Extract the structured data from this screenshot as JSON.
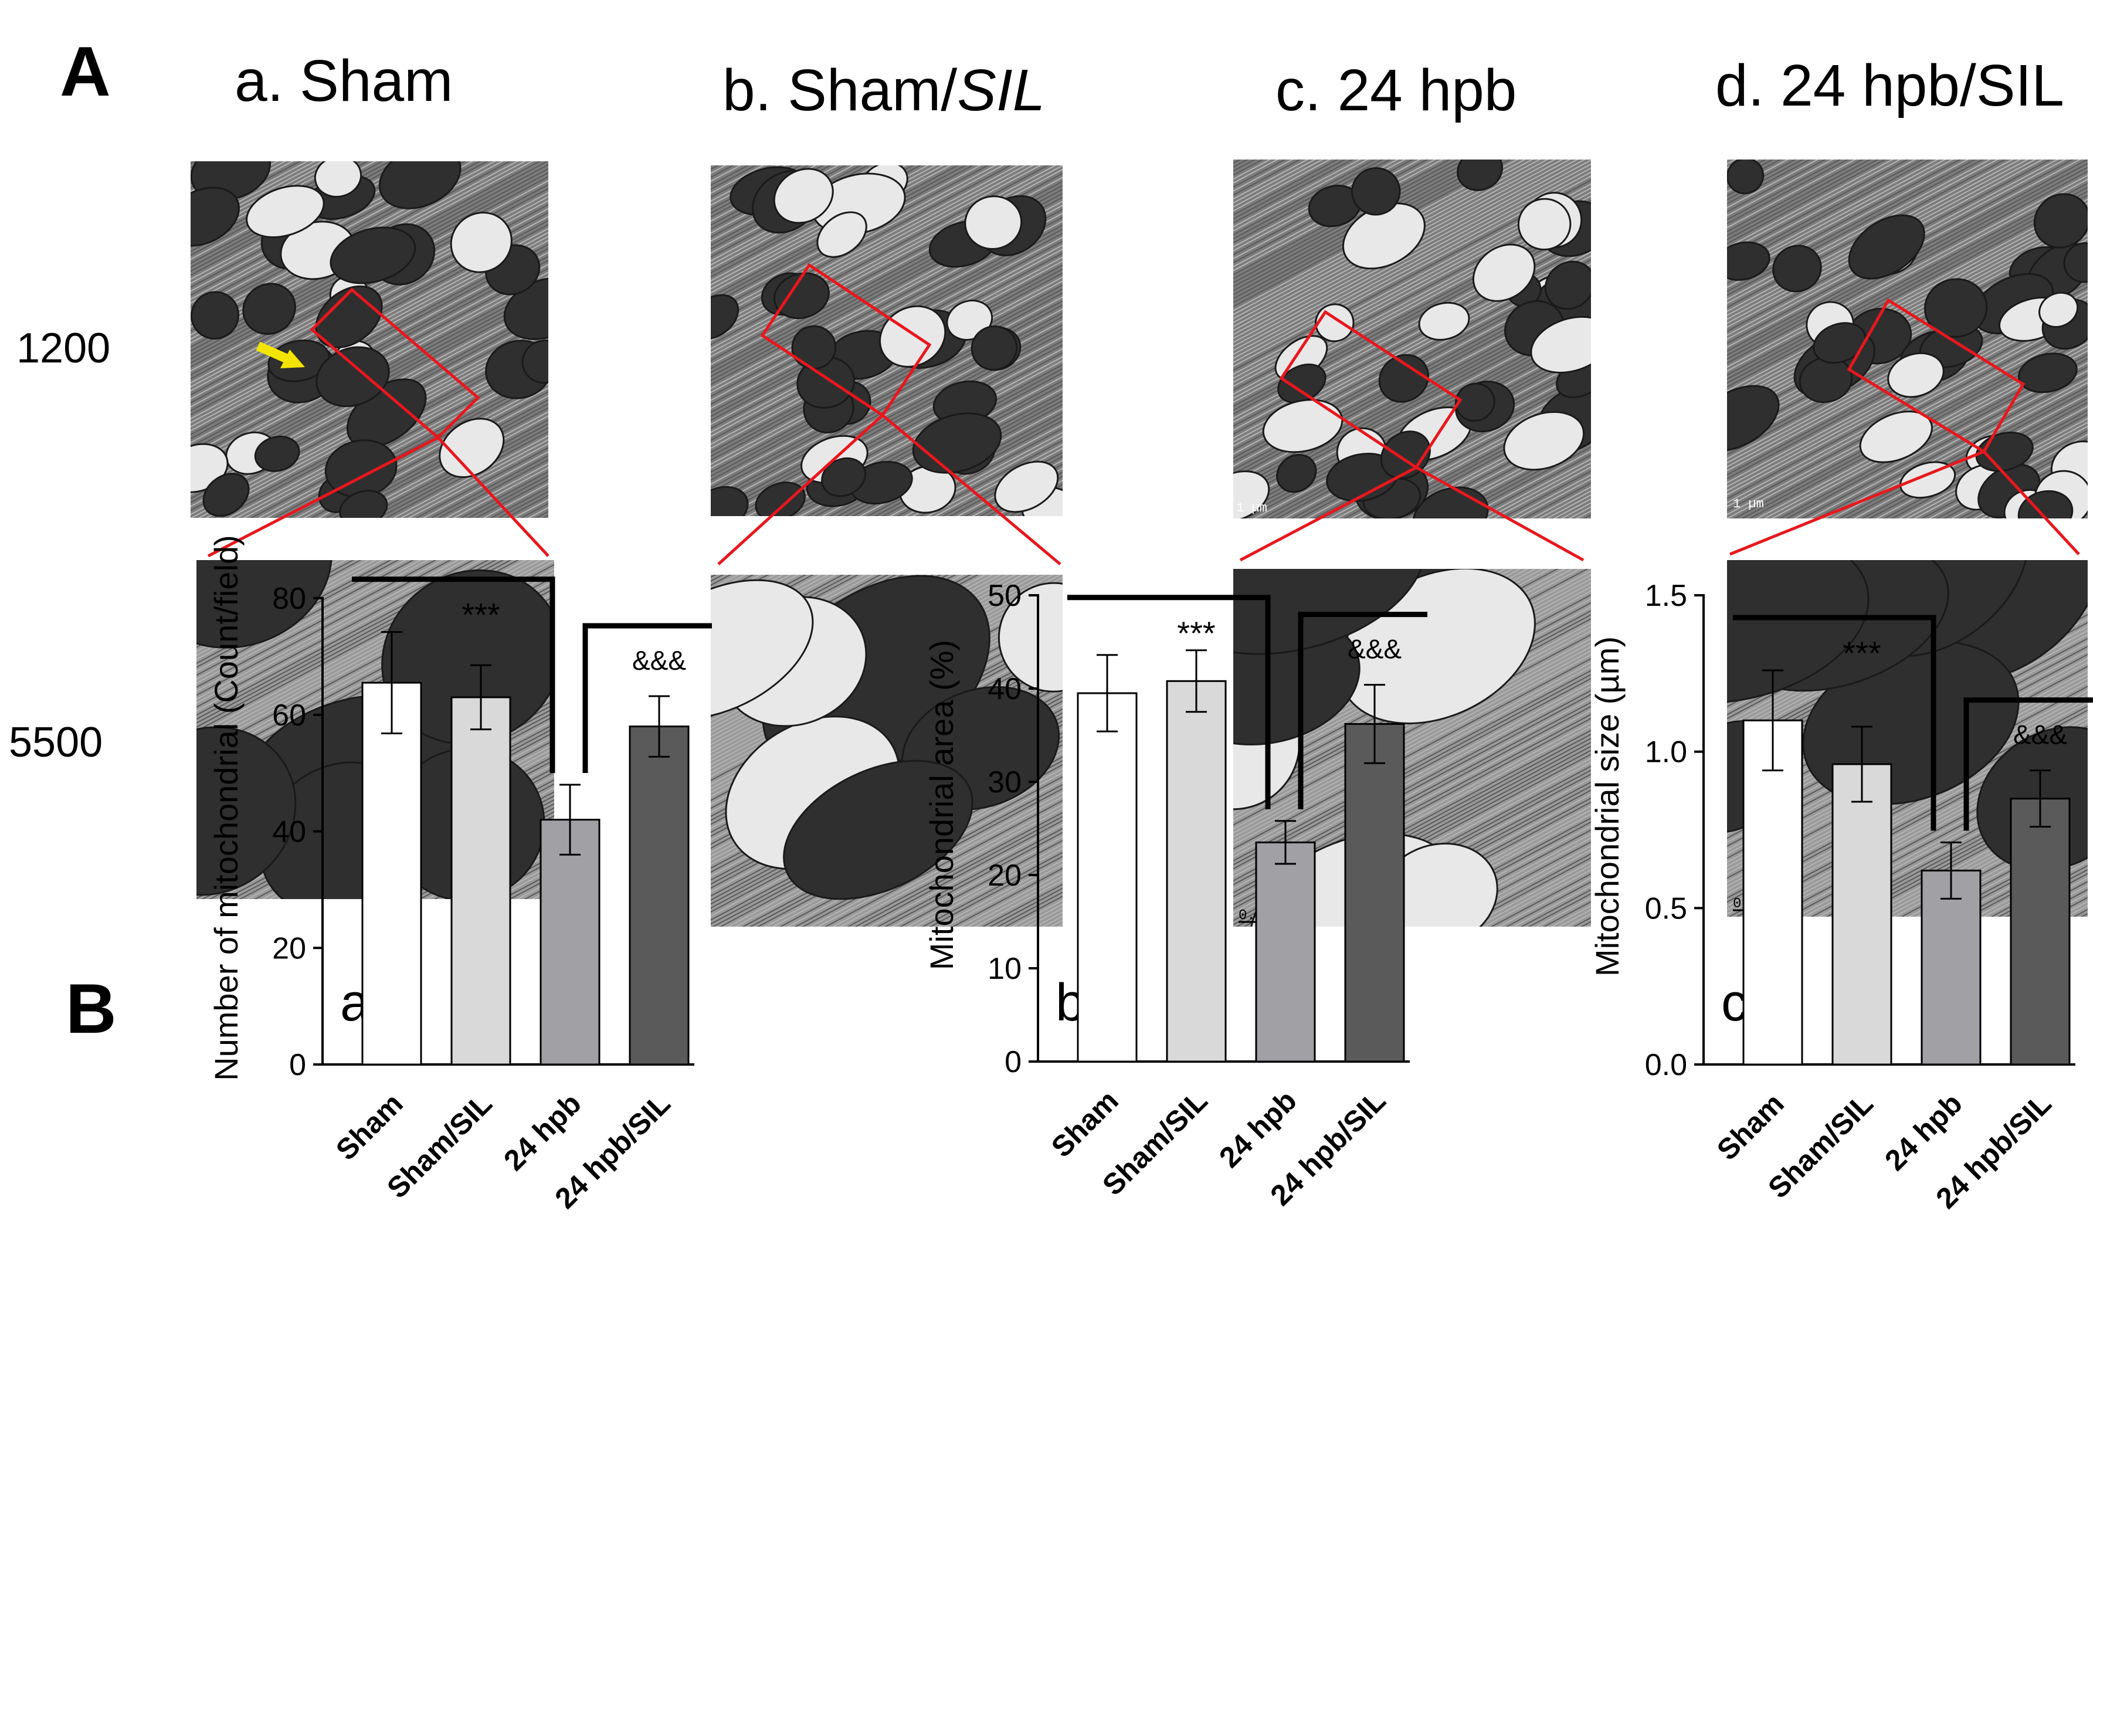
{
  "panel_labels": {
    "a": "A",
    "b": "B"
  },
  "micrographs": {
    "columns": [
      {
        "prefix": "a. Sham",
        "italic": ""
      },
      {
        "prefix": "b. Sham/",
        "italic": "SIL"
      },
      {
        "prefix": "c. 24 hpb",
        "italic": ""
      },
      {
        "prefix": "d. 24 hpb/SIL",
        "italic": ""
      }
    ],
    "magnifications": [
      "1200",
      "5500"
    ],
    "scale_bars": [
      "1 µm",
      "0.2 µm"
    ],
    "colors": {
      "zoom_box": "#e8171d",
      "arrow": "#f4e500"
    }
  },
  "chart_data": [
    {
      "type": "bar",
      "panel_label": "a.",
      "categories": [
        "Sham",
        "Sham/SIL",
        "24 hpb",
        "24 hpb/SIL"
      ],
      "values": [
        65.5,
        63,
        42,
        58
      ],
      "errors": [
        8.7,
        5.5,
        6,
        5.2
      ],
      "bar_colors": [
        "#ffffff",
        "#d9d9d9",
        "#a0a0a5",
        "#5a5a5a"
      ],
      "ylabel": "Number of mitochondrial  (Count/field)",
      "ylim": [
        0,
        80
      ],
      "yticks": [
        "0",
        "20",
        "40",
        "60",
        "80"
      ],
      "tick_values": [
        0,
        20,
        40,
        60,
        80
      ],
      "sig_left": "***",
      "sig_right": "&&&",
      "grid": false
    },
    {
      "type": "bar",
      "panel_label": "b.",
      "categories": [
        "Sham",
        "Sham/SIL",
        "24 hpb",
        "24 hpb/SIL"
      ],
      "values": [
        39.5,
        40.8,
        23.5,
        36.2
      ],
      "errors": [
        4.1,
        3.3,
        2.3,
        4.2
      ],
      "bar_colors": [
        "#ffffff",
        "#d9d9d9",
        "#a0a0a5",
        "#5a5a5a"
      ],
      "ylabel": "Mitochondrial area (%)",
      "ylim": [
        0,
        50
      ],
      "yticks": [
        "0",
        "10",
        "20",
        "30",
        "40",
        "50"
      ],
      "tick_values": [
        0,
        10,
        20,
        30,
        40,
        50
      ],
      "sig_left": "***",
      "sig_right": "&&&",
      "grid": false
    },
    {
      "type": "bar",
      "panel_label": "c.",
      "categories": [
        "Sham",
        "Sham/SIL",
        "24 hpb",
        "24 hpb/SIL"
      ],
      "values": [
        1.1,
        0.96,
        0.62,
        0.85
      ],
      "errors": [
        0.16,
        0.12,
        0.09,
        0.09
      ],
      "bar_colors": [
        "#ffffff",
        "#d9d9d9",
        "#a0a0a5",
        "#5a5a5a"
      ],
      "ylabel": "Mitochondrial size (µm)",
      "ylim": [
        0,
        1.5
      ],
      "yticks": [
        "0.0",
        "0.5",
        "1.0",
        "1.5"
      ],
      "tick_values": [
        0,
        0.5,
        1.0,
        1.5
      ],
      "sig_left": "***",
      "sig_right": "&&&",
      "grid": false
    }
  ]
}
